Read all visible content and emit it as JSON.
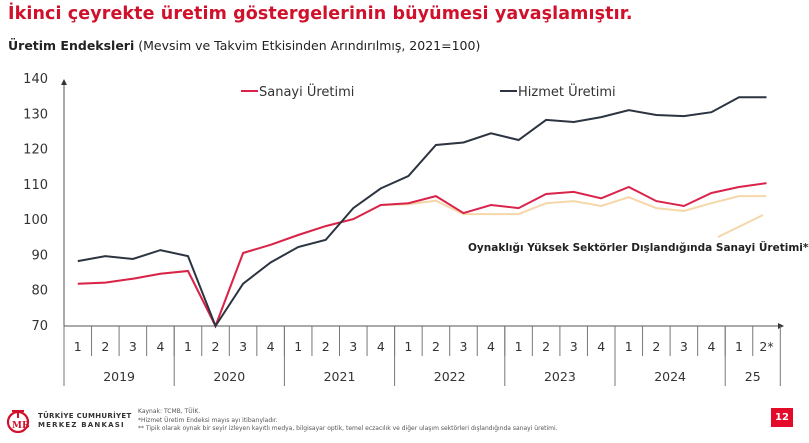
{
  "header": {
    "title": "İkinci çeyrekte üretim göstergelerinin büyümesi yavaşlamıştır.",
    "subtitle_bold": "Üretim Endeksleri",
    "subtitle_rest": " (Mevsim ve Takvim Etkisinden Arındırılmış, 2021=100)"
  },
  "chart_data": {
    "type": "line",
    "title": "Üretim Endeksleri (Mevsim ve Takvim Etkisinden Arındırılmış, 2021=100)",
    "xlabel": "",
    "ylabel": "",
    "ylim": [
      70,
      140
    ],
    "yticks": [
      70,
      80,
      90,
      100,
      110,
      120,
      130,
      140
    ],
    "grid": false,
    "legend_position": "top",
    "quarter_labels": [
      "1",
      "2",
      "3",
      "4",
      "1",
      "2",
      "3",
      "4",
      "1",
      "2",
      "3",
      "4",
      "1",
      "2",
      "3",
      "4",
      "1",
      "2",
      "3",
      "4",
      "1",
      "2",
      "3",
      "4",
      "1",
      "2*"
    ],
    "year_labels": [
      {
        "label": "2019",
        "quarters": 4
      },
      {
        "label": "2020",
        "quarters": 4
      },
      {
        "label": "2021",
        "quarters": 4
      },
      {
        "label": "2022",
        "quarters": 4
      },
      {
        "label": "2023",
        "quarters": 4
      },
      {
        "label": "2024",
        "quarters": 4
      },
      {
        "label": "25",
        "quarters": 2
      }
    ],
    "categories": [
      "2019Q1",
      "2019Q2",
      "2019Q3",
      "2019Q4",
      "2020Q1",
      "2020Q2",
      "2020Q3",
      "2020Q4",
      "2021Q1",
      "2021Q2",
      "2021Q3",
      "2021Q4",
      "2022Q1",
      "2022Q2",
      "2022Q3",
      "2022Q4",
      "2023Q1",
      "2023Q2",
      "2023Q3",
      "2023Q4",
      "2024Q1",
      "2024Q2",
      "2024Q3",
      "2024Q4",
      "2025Q1",
      "2025Q2"
    ],
    "series": [
      {
        "name": "Sanayi Üretimi",
        "color": "#d9234a",
        "values": [
          82.0,
          82.3,
          83.4,
          84.8,
          85.6,
          70.0,
          90.7,
          93.0,
          95.8,
          98.3,
          100.3,
          104.3,
          104.8,
          106.8,
          102.0,
          104.3,
          103.4,
          107.4,
          108.0,
          106.2,
          109.4,
          105.4,
          104.0,
          107.7,
          109.4,
          110.5
        ]
      },
      {
        "name": "Hizmet Üretimi",
        "color": "#2b3440",
        "values": [
          88.4,
          89.8,
          89.0,
          91.5,
          89.8,
          70.0,
          82.0,
          88.0,
          92.4,
          94.4,
          103.4,
          109.0,
          112.5,
          121.3,
          122.0,
          124.6,
          122.7,
          128.4,
          127.8,
          129.2,
          131.2,
          129.8,
          129.5,
          130.6,
          134.8,
          134.8
        ]
      },
      {
        "name": "Oynaklığı Yüksek Sektörler Dışlandığında Sanayi Üretimi**",
        "color": "#f5d7a8",
        "values": [
          82.0,
          82.3,
          83.4,
          84.8,
          85.6,
          70.0,
          90.7,
          93.0,
          95.8,
          98.3,
          100.3,
          104.3,
          104.5,
          105.5,
          101.7,
          101.7,
          101.7,
          104.8,
          105.4,
          104.0,
          106.5,
          103.4,
          102.6,
          104.8,
          106.8,
          106.8
        ]
      }
    ],
    "annotation": "Oynaklığı Yüksek Sektörler Dışlandığında Sanayi Üretimi**"
  },
  "legend": {
    "sanayi": "Sanayi Üretimi",
    "hizmet": "Hizmet Üretimi",
    "excluded": "Oynaklığı Yüksek Sektörler Dışlandığında Sanayi Üretimi**"
  },
  "footer": {
    "logo_line1": "TÜRKİYE CUMHURİYET",
    "logo_line2": "MERKEZ BANKASI",
    "logo_mark": "TCMB",
    "note1": "Kaynak: TCMB, TÜİK.",
    "note2": "*Hizmet Üretim Endeksi mayıs ayı itibarıyladır.",
    "note3": "** Tipik olarak oynak bir seyir izleyen kayıtlı medya, bilgisayar optik, temel eczacılık ve diğer ulaşım sektörleri dışlandığında sanayi üretimi.",
    "page_number": "12"
  },
  "colors": {
    "title": "#d0112b",
    "sanayi": "#d9234a",
    "hizmet": "#2b3440",
    "excluded": "#f5d7a8",
    "badge": "#e30a2a"
  }
}
